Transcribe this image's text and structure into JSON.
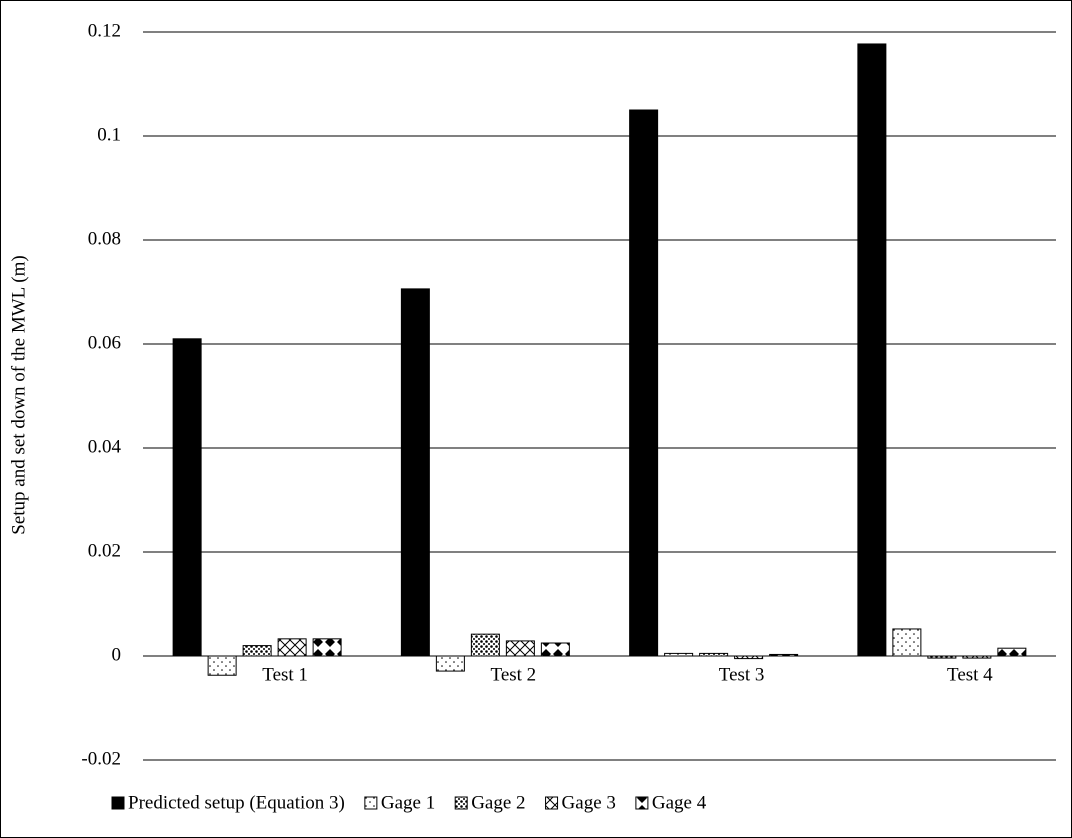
{
  "chart_data": {
    "type": "bar",
    "y_label": "Setup and set down of the MWL (m)",
    "categories": [
      "Test 1",
      "Test 2",
      "Test 3",
      "Test 4"
    ],
    "series": [
      {
        "name": "Predicted setup (Equation 3)",
        "color": "#000000",
        "pattern": "solid",
        "values": [
          0.061,
          0.0706,
          0.105,
          0.1177
        ]
      },
      {
        "name": "Gage 1",
        "color": "#000000",
        "pattern": "sparse-dots",
        "values": [
          -0.0037,
          -0.0029,
          0.0005,
          0.0052
        ]
      },
      {
        "name": "Gage 2",
        "color": "#000000",
        "pattern": "dense-dots",
        "values": [
          0.002,
          0.0042,
          0.0005,
          -0.0004
        ]
      },
      {
        "name": "Gage 3",
        "color": "#000000",
        "pattern": "crosshatch",
        "values": [
          0.0033,
          0.0029,
          -0.0005,
          -0.0004
        ]
      },
      {
        "name": "Gage 4",
        "color": "#000000",
        "pattern": "diamonds",
        "values": [
          0.0033,
          0.0025,
          0.0003,
          0.0015
        ]
      }
    ],
    "ylim": [
      -0.02,
      0.12
    ],
    "yticks": [
      -0.02,
      0,
      0.02,
      0.04,
      0.06,
      0.08,
      0.1,
      0.12
    ],
    "grid": true,
    "legend": "bottom"
  }
}
